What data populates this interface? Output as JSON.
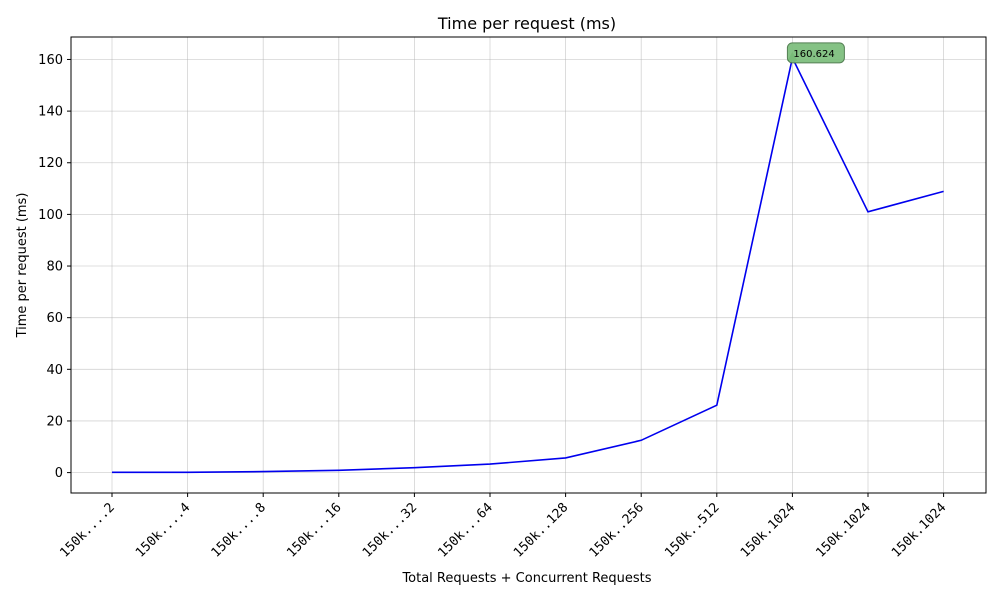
{
  "chart_data": {
    "type": "line",
    "title": "Time per request (ms)",
    "xlabel": "Total Requests + Concurrent Requests",
    "ylabel": "Time per request (ms)",
    "categories": [
      "150k....2",
      "150k....4",
      "150k....8",
      "150k...16",
      "150k...32",
      "150k...64",
      "150k..128",
      "150k..256",
      "150k..512",
      "150k.1024",
      "150k.1024",
      "150k.1024"
    ],
    "series": [
      {
        "values": [
          0.1,
          0.1,
          0.4,
          0.9,
          1.9,
          3.3,
          5.7,
          12.5,
          26.1,
          160.624,
          101.0,
          108.9
        ],
        "color": "#0000ee"
      }
    ],
    "y_ticks": [
      0,
      20,
      40,
      60,
      80,
      100,
      120,
      140,
      160
    ],
    "ylim": [
      -7.9,
      168.7
    ],
    "grid": true,
    "annotation": {
      "index": 9,
      "text": "160.624",
      "box_color": "#7fbf7f",
      "marker_color": "#008000"
    }
  }
}
